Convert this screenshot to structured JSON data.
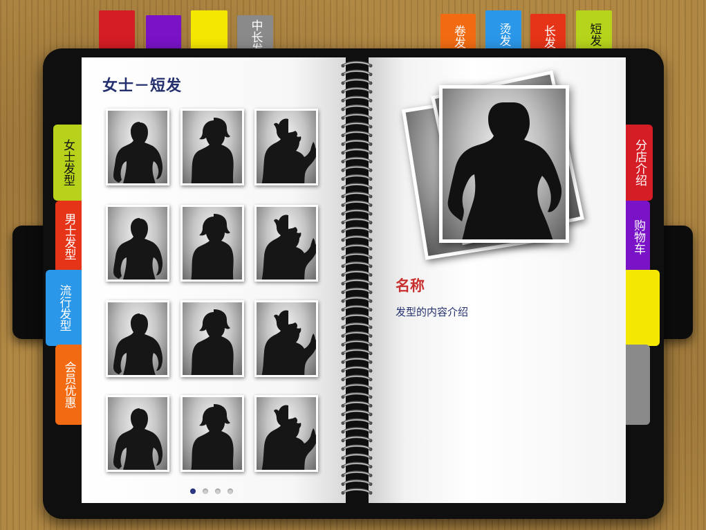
{
  "top_tabs_left": [
    {
      "label": "",
      "color": "#d41d24"
    },
    {
      "label": "",
      "color": "#7a12c8"
    },
    {
      "label": "",
      "color": "#f5e800"
    },
    {
      "label": "中长发",
      "color": "#8a8a8a"
    }
  ],
  "top_tabs_right": [
    {
      "label": "卷发",
      "color": "#f26b12"
    },
    {
      "label": "烫发",
      "color": "#2b97e8"
    },
    {
      "label": "长发",
      "color": "#e63418"
    },
    {
      "label": "短发",
      "color": "#b7d41c"
    }
  ],
  "left_tabs": [
    {
      "label": "女士发型",
      "color": "#b8d21c"
    },
    {
      "label": "男士发型",
      "color": "#e63418"
    },
    {
      "label": "流行发型",
      "color": "#2b97e8"
    },
    {
      "label": "会员优惠",
      "color": "#f26b12"
    }
  ],
  "right_tabs": [
    {
      "label": "分店介绍",
      "color": "#d41d24"
    },
    {
      "label": "购物车",
      "color": "#7a12c8"
    },
    {
      "label": "",
      "color": "#f5e800"
    },
    {
      "label": "",
      "color": "#8a8a8a"
    }
  ],
  "left_page": {
    "title": "女士－短发",
    "thumbnails": [
      "silhouette-pose-a",
      "silhouette-pose-b",
      "silhouette-pose-c",
      "silhouette-pose-a",
      "silhouette-pose-b",
      "silhouette-pose-c",
      "silhouette-pose-a",
      "silhouette-pose-b",
      "silhouette-pose-c",
      "silhouette-pose-a",
      "silhouette-pose-b",
      "silhouette-pose-c"
    ],
    "pager": {
      "total": 4,
      "current": 1
    }
  },
  "right_page": {
    "name": "名称",
    "description": "发型的内容介绍"
  },
  "colors": {
    "title": "#24306e",
    "name": "#c8302f",
    "pager_active": "#2d3b8a"
  }
}
